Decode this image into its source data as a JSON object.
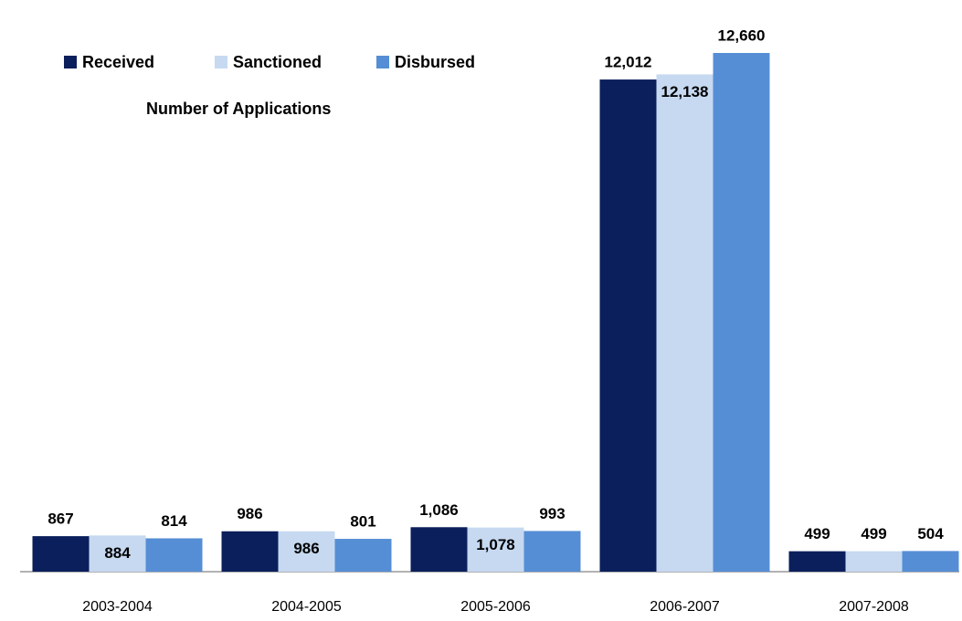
{
  "chart_data": {
    "type": "bar",
    "title": "Number of Applications",
    "categories": [
      "2003-2004",
      "2004-2005",
      "2005-2006",
      "2006-2007",
      "2007-2008"
    ],
    "series": [
      {
        "name": "Received",
        "color": "#0b1f5c",
        "values": [
          867,
          986,
          1086,
          12012,
          499
        ],
        "value_labels": [
          "867",
          "986",
          "1,086",
          "12,012",
          "499"
        ]
      },
      {
        "name": "Sanctioned",
        "color": "#c6d9f1",
        "values": [
          884,
          986,
          1078,
          12138,
          499
        ],
        "value_labels": [
          "884",
          "986",
          "1,078",
          "12,138",
          "499"
        ]
      },
      {
        "name": "Disbursed",
        "color": "#558ed5",
        "values": [
          814,
          801,
          993,
          12660,
          504
        ],
        "value_labels": [
          "814",
          "801",
          "993",
          "12,660",
          "504"
        ]
      }
    ],
    "legend": "top-left"
  }
}
